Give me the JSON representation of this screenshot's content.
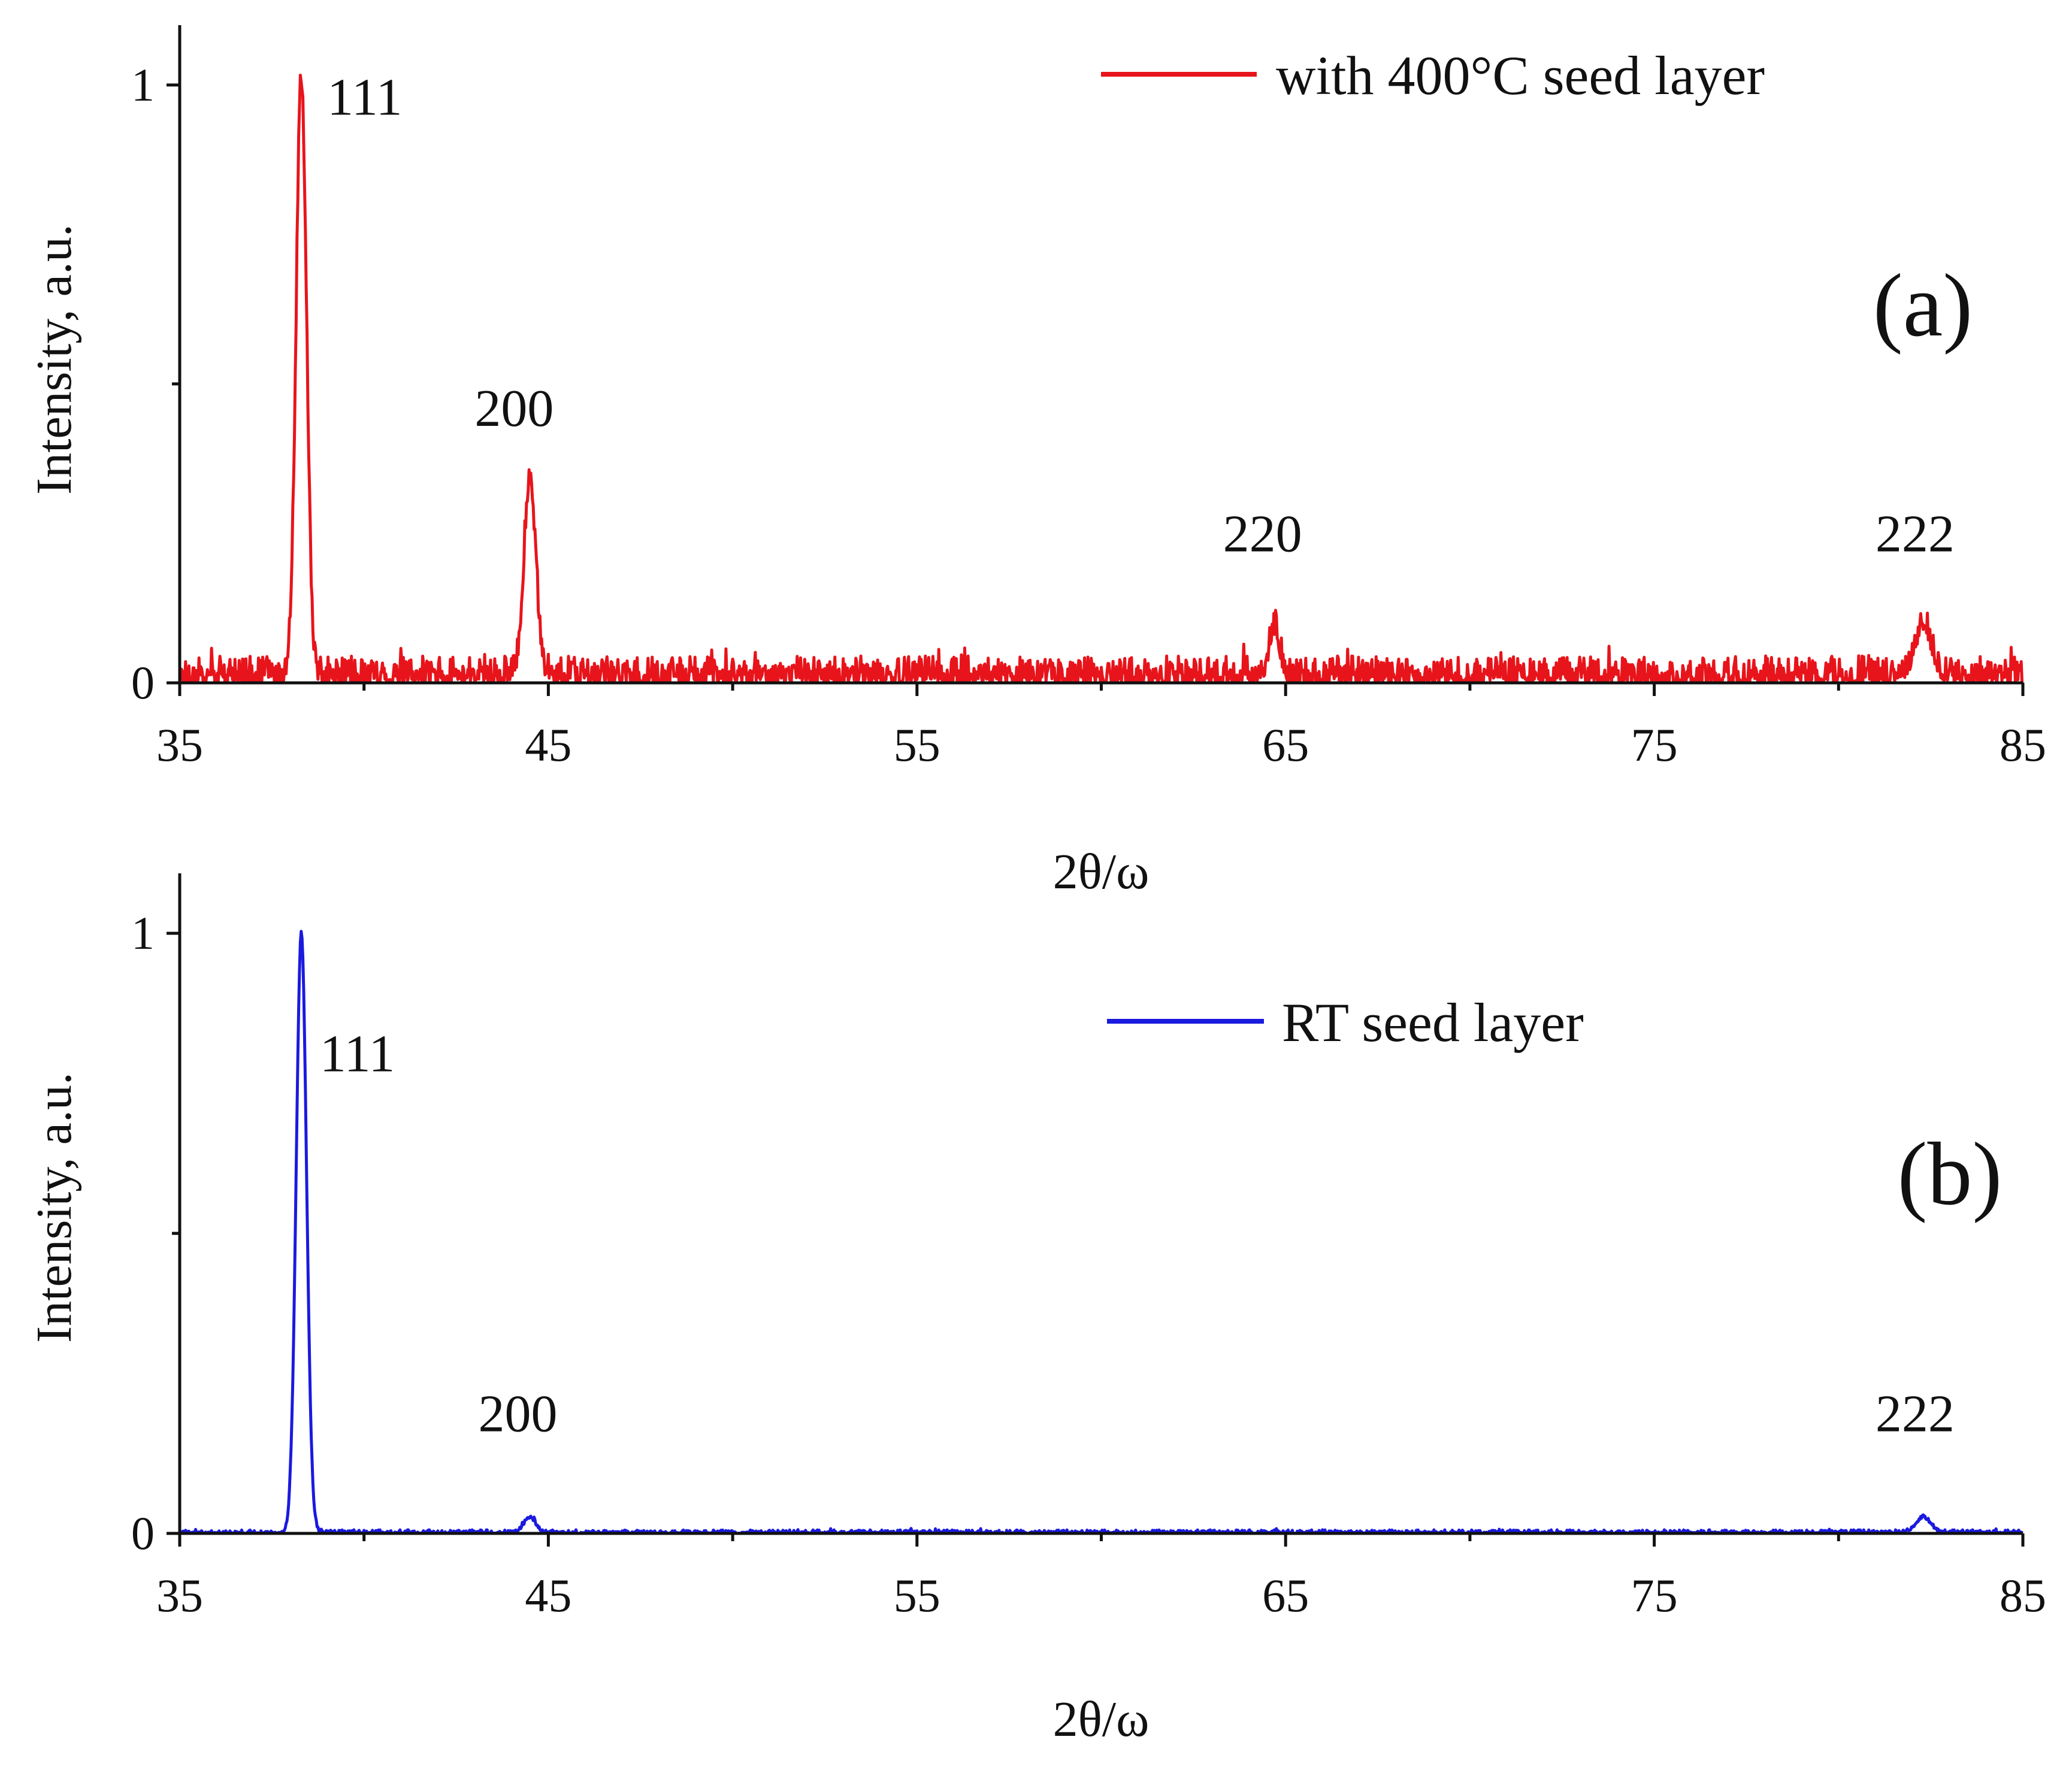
{
  "chart_data": [
    {
      "type": "line",
      "panel": "(a)",
      "legend": "with  400°C seed layer",
      "legend_position": "top-right",
      "color": "#e8141b",
      "xlabel": "2θ/ω",
      "ylabel": "Intensity, a.u.",
      "xlim": [
        35,
        85
      ],
      "ylim": [
        0,
        1.1
      ],
      "xticks": [
        "35",
        "45",
        "55",
        "65",
        "75",
        "85"
      ],
      "yticks": [
        "0",
        "1"
      ],
      "noise_level": 0.045,
      "series": [
        {
          "name": "with  400°C seed layer",
          "peaks": [
            {
              "hkl": "111",
              "x": 38.3,
              "height": 1.0,
              "width": 0.14
            },
            {
              "hkl": "200",
              "x": 44.5,
              "height": 0.33,
              "width": 0.16
            },
            {
              "hkl": "220",
              "x": 64.7,
              "height": 0.08,
              "width": 0.14
            },
            {
              "hkl": "222",
              "x": 82.3,
              "height": 0.085,
              "width": 0.22
            }
          ]
        }
      ],
      "peak_labels": [
        {
          "text": "111",
          "x": 39.0,
          "y": 0.95
        },
        {
          "text": "200",
          "x": 43.0,
          "y": 0.43
        },
        {
          "text": "220",
          "x": 63.3,
          "y": 0.22
        },
        {
          "text": "222",
          "x": 81.0,
          "y": 0.22
        }
      ]
    },
    {
      "type": "line",
      "panel": "(b)",
      "legend": "RT seed layer",
      "legend_position": "top-right",
      "color": "#1a1adf",
      "xlabel": "2θ/ω",
      "ylabel": "Intensity, a.u.",
      "xlim": [
        35,
        85
      ],
      "ylim": [
        0,
        1.1
      ],
      "xticks": [
        "35",
        "45",
        "55",
        "65",
        "75",
        "85"
      ],
      "yticks": [
        "0",
        "1"
      ],
      "noise_level": 0.006,
      "series": [
        {
          "name": "RT seed layer",
          "peaks": [
            {
              "hkl": "111",
              "x": 38.3,
              "height": 1.0,
              "width": 0.14
            },
            {
              "hkl": "200",
              "x": 44.5,
              "height": 0.025,
              "width": 0.16
            },
            {
              "hkl": "222",
              "x": 82.3,
              "height": 0.025,
              "width": 0.2
            }
          ]
        }
      ],
      "peak_labels": [
        {
          "text": "111",
          "x": 38.8,
          "y": 0.77
        },
        {
          "text": "200",
          "x": 43.1,
          "y": 0.17
        },
        {
          "text": "222",
          "x": 81.0,
          "y": 0.17
        }
      ]
    }
  ]
}
